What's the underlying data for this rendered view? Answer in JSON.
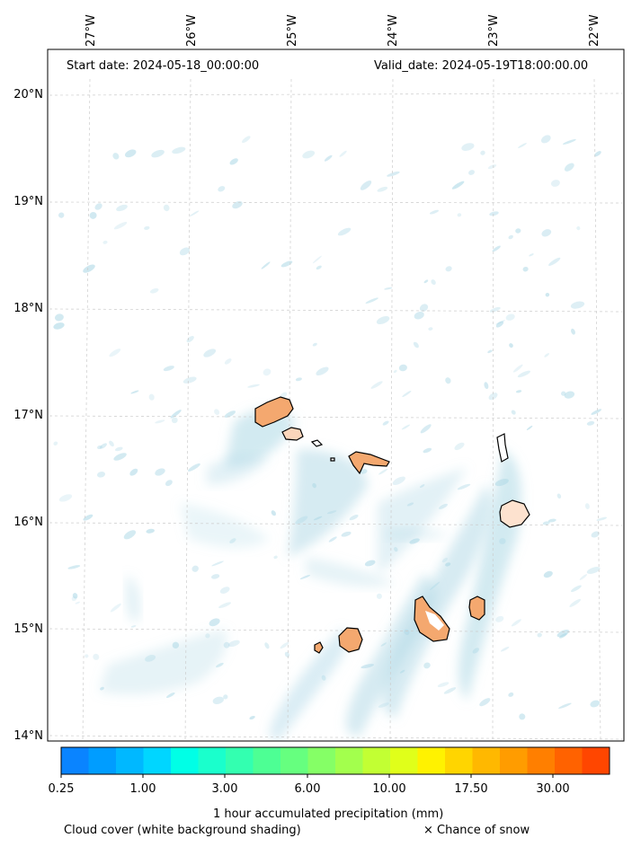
{
  "header": {
    "start_date": "Start date: 2024-05-18_00:00:00",
    "valid_date": "Valid_date: 2024-05-19T18:00:00.00"
  },
  "axes": {
    "lon_labels": [
      "27°W",
      "26°W",
      "25°W",
      "24°W",
      "23°W",
      "22°W"
    ],
    "lat_labels": [
      "20°N",
      "19°N",
      "18°N",
      "17°N",
      "16°N",
      "15°N",
      "14°N"
    ]
  },
  "colorbar": {
    "label": "1 hour accumulated precipitation (mm)",
    "tick_labels": [
      "0.25",
      "1.00",
      "3.00",
      "6.00",
      "10.00",
      "17.50",
      "30.00"
    ],
    "colors": [
      "#0a84ff",
      "#009dff",
      "#00b8ff",
      "#00d6ff",
      "#00ffe6",
      "#1affcc",
      "#33ffb0",
      "#4dff94",
      "#66ff7f",
      "#85ff66",
      "#a3ff4d",
      "#c2ff33",
      "#e0ff1a",
      "#fff200",
      "#ffd500",
      "#ffb800",
      "#ff9c00",
      "#ff7f00",
      "#ff6200",
      "#ff4600"
    ]
  },
  "footer": {
    "cloud_note": "Cloud cover (white background shading)",
    "snow_note": "× Chance of snow"
  },
  "colors": {
    "cloud": "#add8e6",
    "island_fill": "#f4a86f",
    "island_light": "#fde2cf",
    "grid": "#cccccc"
  }
}
